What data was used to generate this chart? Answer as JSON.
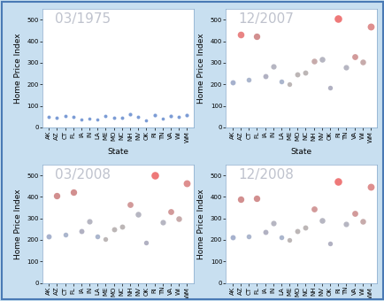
{
  "states": [
    "AK",
    "AZ",
    "CT",
    "FL",
    "IA",
    "IN",
    "LA",
    "ME",
    "MO",
    "NC",
    "NH",
    "NV",
    "OK",
    "RI",
    "TN",
    "VA",
    "WI",
    "WM"
  ],
  "dates": [
    "03/1975",
    "12/2007",
    "03/2008",
    "12/2008"
  ],
  "background_color": "#c8dff0",
  "plot_bg": "#ffffff",
  "ylabel": "Home Price Index",
  "xlabel": "State",
  "ylim": [
    0,
    550
  ],
  "yticks": [
    0,
    100,
    200,
    300,
    400,
    500
  ],
  "data": {
    "03/1975": {
      "values": [
        50,
        44,
        55,
        48,
        38,
        42,
        36,
        52,
        43,
        46,
        62,
        50,
        33,
        57,
        40,
        54,
        47,
        58
      ],
      "sizes": [
        8,
        8,
        8,
        8,
        7,
        7,
        7,
        8,
        8,
        8,
        9,
        8,
        7,
        9,
        7,
        9,
        8,
        9
      ],
      "colors": [
        "#4472c4",
        "#4472c4",
        "#4472c4",
        "#4472c4",
        "#4472c4",
        "#4472c4",
        "#4472c4",
        "#4472c4",
        "#4472c4",
        "#4472c4",
        "#4472c4",
        "#4472c4",
        "#4472c4",
        "#4472c4",
        "#4472c4",
        "#4472c4",
        "#4472c4",
        "#4472c4"
      ]
    },
    "12/2007": {
      "values": [
        210,
        430,
        220,
        425,
        240,
        285,
        215,
        200,
        245,
        255,
        310,
        315,
        185,
        505,
        280,
        330,
        305,
        470
      ],
      "sizes": [
        18,
        30,
        16,
        28,
        18,
        20,
        16,
        15,
        18,
        18,
        22,
        22,
        15,
        38,
        20,
        24,
        22,
        32
      ],
      "colors": [
        "#8090b8",
        "#e05050",
        "#8898b8",
        "#c06060",
        "#9090a8",
        "#9898a8",
        "#8898b8",
        "#a09898",
        "#a09898",
        "#a09898",
        "#b08888",
        "#9898a8",
        "#9090a8",
        "#e84040",
        "#9898a8",
        "#c07070",
        "#b08888",
        "#d06060"
      ]
    },
    "03/2008": {
      "values": [
        215,
        405,
        225,
        420,
        242,
        288,
        218,
        203,
        248,
        262,
        365,
        318,
        188,
        500,
        283,
        333,
        298,
        462
      ],
      "sizes": [
        18,
        28,
        16,
        28,
        18,
        20,
        16,
        15,
        18,
        18,
        24,
        22,
        15,
        38,
        20,
        24,
        22,
        32
      ],
      "colors": [
        "#8090b8",
        "#c06060",
        "#8898b8",
        "#c06060",
        "#9090a8",
        "#9898a8",
        "#8898b8",
        "#a09898",
        "#a09898",
        "#a09898",
        "#c07070",
        "#9898a8",
        "#9090a8",
        "#e84040",
        "#9898a8",
        "#c07070",
        "#b08888",
        "#d06060"
      ]
    },
    "12/2008": {
      "values": [
        213,
        388,
        218,
        392,
        238,
        278,
        213,
        198,
        243,
        258,
        343,
        292,
        183,
        472,
        272,
        322,
        288,
        448
      ],
      "sizes": [
        18,
        28,
        16,
        28,
        18,
        20,
        16,
        15,
        18,
        18,
        24,
        22,
        15,
        38,
        20,
        24,
        22,
        32
      ],
      "colors": [
        "#8090b8",
        "#c06060",
        "#8898b8",
        "#c06060",
        "#9090a8",
        "#9898a8",
        "#8898b8",
        "#a09898",
        "#a09898",
        "#a09898",
        "#c07070",
        "#9898a8",
        "#9090a8",
        "#e84040",
        "#9898a8",
        "#c07070",
        "#b08888",
        "#d06060"
      ]
    }
  },
  "label_fontsize": 6.5,
  "tick_fontsize": 5.0,
  "date_text_color": "#b8bcc8",
  "date_text_fontsize": 11,
  "outer_border_color": "#4a7ab5",
  "inner_border_color": "#6699cc"
}
